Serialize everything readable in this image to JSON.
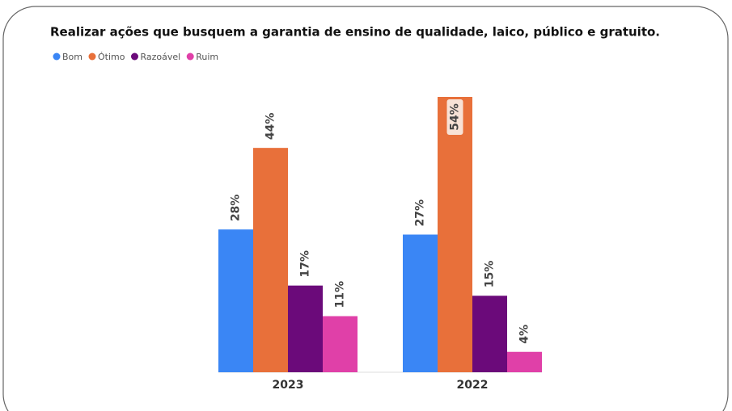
{
  "chart_data": {
    "type": "bar",
    "title": "Realizar ações que busquem a garantia de ensino de qualidade, laico, público e gratuito.",
    "categories": [
      "2023",
      "2022"
    ],
    "series": [
      {
        "name": "Bom",
        "color": "#3a86f5",
        "values": [
          28,
          27
        ],
        "value_labels": [
          "28%",
          "27%"
        ]
      },
      {
        "name": "Ótimo",
        "color": "#e8703a",
        "values": [
          44,
          54
        ],
        "value_labels": [
          "44%",
          "54%"
        ]
      },
      {
        "name": "Razoável",
        "color": "#6b0a7a",
        "values": [
          17,
          15
        ],
        "value_labels": [
          "17%",
          "15%"
        ]
      },
      {
        "name": "Ruim",
        "color": "#e040a8",
        "values": [
          11,
          4
        ],
        "value_labels": [
          "11%",
          "4%"
        ]
      }
    ]
  }
}
